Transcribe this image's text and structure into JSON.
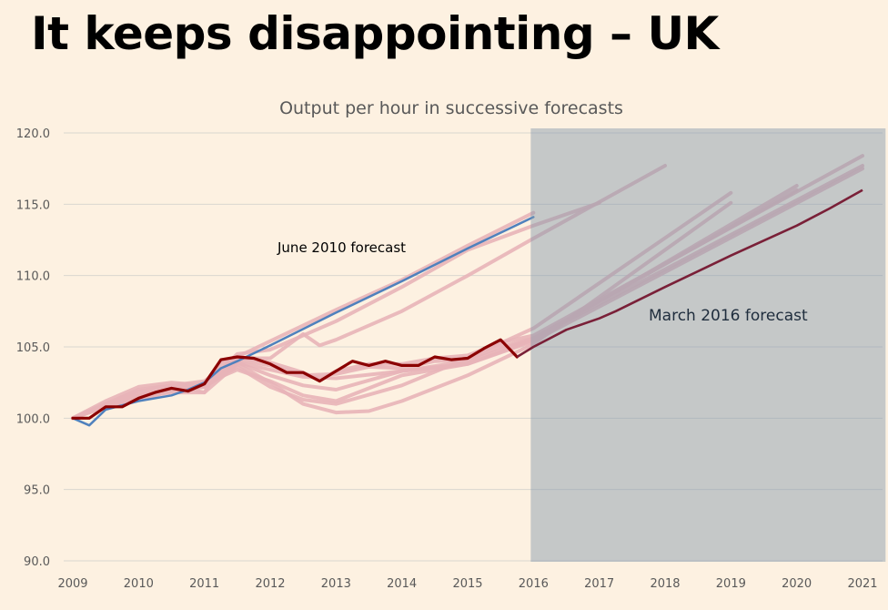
{
  "slide": {
    "title": "It keeps disappointing – UK"
  },
  "chart_data": {
    "type": "line",
    "title": "Output per hour in successive forecasts",
    "xlabel": "",
    "ylabel": "",
    "xlim": [
      2009,
      2021
    ],
    "ylim": [
      90,
      120
    ],
    "x_ticks": [
      "2009",
      "2010",
      "2011",
      "2012",
      "2013",
      "2014",
      "2015",
      "2016",
      "2017",
      "2018",
      "2019",
      "2020",
      "2021"
    ],
    "y_ticks": [
      "90.0",
      "95.0",
      "100.0",
      "105.0",
      "110.0",
      "115.0",
      "120.0"
    ],
    "grid": "horizontal",
    "shaded_region": {
      "from": 2016,
      "to": 2021.35,
      "meaning": "forecast period"
    },
    "colors": {
      "background": "#fdf1e1",
      "shade": "#c5ccd6",
      "past_forecasts": "#e8b4b8",
      "june_2010": "#4f81bd",
      "march_2016": "#8b0000",
      "march_2016_forecast": "#7a2038"
    },
    "annotations": [
      "June 2010 forecast",
      "March 2016 forecast"
    ],
    "series": [
      {
        "points": [
          [
            2009,
            100
          ],
          [
            2009.5,
            101
          ],
          [
            2010,
            101.9
          ],
          [
            2010.5,
            102.3
          ],
          [
            2011,
            102.6
          ],
          [
            2011.5,
            104.3
          ],
          [
            2012,
            105.4
          ],
          [
            2013,
            107.6
          ],
          [
            2014,
            109.7
          ],
          [
            2015,
            112.1
          ],
          [
            2016,
            114.4
          ]
        ]
      },
      {
        "points": [
          [
            2009,
            100
          ],
          [
            2009.5,
            101.2
          ],
          [
            2010,
            102.2
          ],
          [
            2010.5,
            102.5
          ],
          [
            2011,
            102.3
          ],
          [
            2011.5,
            104.5
          ],
          [
            2012,
            104.8
          ],
          [
            2013,
            106.8
          ],
          [
            2014,
            109.2
          ],
          [
            2015,
            111.8
          ],
          [
            2016,
            113.5
          ],
          [
            2017,
            115.1
          ]
        ]
      },
      {
        "points": [
          [
            2009,
            100
          ],
          [
            2009.5,
            101
          ],
          [
            2010,
            102
          ],
          [
            2010.5,
            102.3
          ],
          [
            2011,
            101.8
          ],
          [
            2011.25,
            103.8
          ],
          [
            2011.5,
            104.2
          ],
          [
            2012,
            104.2
          ],
          [
            2012.5,
            105.9
          ],
          [
            2012.75,
            105.1
          ],
          [
            2013,
            105.5
          ],
          [
            2014,
            107.5
          ],
          [
            2015,
            110
          ],
          [
            2016,
            112.6
          ],
          [
            2018,
            117.7
          ]
        ]
      },
      {
        "points": [
          [
            2009,
            100
          ],
          [
            2009.5,
            100.8
          ],
          [
            2010,
            101.5
          ],
          [
            2010.5,
            101.8
          ],
          [
            2011,
            101.8
          ],
          [
            2011.5,
            103.8
          ],
          [
            2012,
            102.5
          ],
          [
            2012.5,
            101.0
          ],
          [
            2013,
            100.4
          ],
          [
            2013.5,
            100.5
          ],
          [
            2014,
            101.2
          ],
          [
            2015,
            103.0
          ],
          [
            2016,
            105.2
          ],
          [
            2019,
            115.1
          ]
        ]
      },
      {
        "points": [
          [
            2009,
            100
          ],
          [
            2009.5,
            100.9
          ],
          [
            2010,
            101.3
          ],
          [
            2010.5,
            101.9
          ],
          [
            2011,
            102.2
          ],
          [
            2011.5,
            103.6
          ],
          [
            2012,
            102.2
          ],
          [
            2012.5,
            101.3
          ],
          [
            2013,
            101.0
          ],
          [
            2014,
            102.3
          ],
          [
            2015,
            104.2
          ],
          [
            2016,
            106.3
          ],
          [
            2019,
            115.8
          ]
        ]
      },
      {
        "points": [
          [
            2009,
            100
          ],
          [
            2009.5,
            101
          ],
          [
            2010,
            101.6
          ],
          [
            2010.5,
            102.1
          ],
          [
            2011,
            102.4
          ],
          [
            2011.5,
            103.4
          ],
          [
            2012,
            102.6
          ],
          [
            2012.5,
            101.6
          ],
          [
            2013,
            101.2
          ],
          [
            2014,
            103.0
          ],
          [
            2015,
            103.8
          ],
          [
            2016,
            105.5
          ],
          [
            2020,
            116.3
          ]
        ]
      },
      {
        "points": [
          [
            2009,
            100
          ],
          [
            2009.5,
            101
          ],
          [
            2010,
            101.7
          ],
          [
            2010.5,
            102
          ],
          [
            2011,
            102.5
          ],
          [
            2011.5,
            103.9
          ],
          [
            2012,
            103.0
          ],
          [
            2012.5,
            102.3
          ],
          [
            2013,
            102.0
          ],
          [
            2014,
            103.3
          ],
          [
            2015,
            104.0
          ],
          [
            2016,
            105.6
          ],
          [
            2020,
            116.0
          ]
        ]
      },
      {
        "points": [
          [
            2009,
            100
          ],
          [
            2009.5,
            100.9
          ],
          [
            2010,
            101.5
          ],
          [
            2010.5,
            102.1
          ],
          [
            2011,
            102.4
          ],
          [
            2011.25,
            104.0
          ],
          [
            2011.5,
            104.3
          ],
          [
            2012,
            103.9
          ],
          [
            2012.5,
            103.2
          ],
          [
            2012.75,
            102.7
          ],
          [
            2013,
            103.3
          ],
          [
            2013.5,
            103.8
          ],
          [
            2014,
            103.8
          ],
          [
            2014.5,
            104.2
          ],
          [
            2015,
            104.4
          ],
          [
            2015.5,
            105.3
          ],
          [
            2016,
            105.8
          ],
          [
            2021,
            118.4
          ]
        ]
      },
      {
        "points": [
          [
            2009,
            100
          ],
          [
            2009.5,
            100.8
          ],
          [
            2010,
            101.4
          ],
          [
            2010.5,
            102
          ],
          [
            2011,
            102.3
          ],
          [
            2011.5,
            104.1
          ],
          [
            2012,
            103.7
          ],
          [
            2012.5,
            103.0
          ],
          [
            2013,
            103.1
          ],
          [
            2013.5,
            103.6
          ],
          [
            2014,
            103.5
          ],
          [
            2014.5,
            104
          ],
          [
            2015,
            104.1
          ],
          [
            2015.5,
            105.0
          ],
          [
            2016,
            105.6
          ],
          [
            2021,
            117.7
          ]
        ]
      },
      {
        "points": [
          [
            2009,
            100
          ],
          [
            2009.5,
            100.8
          ],
          [
            2010,
            101.3
          ],
          [
            2010.5,
            101.9
          ],
          [
            2011,
            102.2
          ],
          [
            2011.5,
            103.9
          ],
          [
            2012,
            103.4
          ],
          [
            2012.5,
            102.9
          ],
          [
            2013,
            102.8
          ],
          [
            2014,
            103.3
          ],
          [
            2015,
            103.8
          ],
          [
            2016,
            105.4
          ],
          [
            2021,
            117.5
          ]
        ]
      },
      {
        "name": "June 2010 forecast",
        "points": [
          [
            2009,
            100
          ],
          [
            2009.25,
            99.5
          ],
          [
            2009.5,
            100.6
          ],
          [
            2009.75,
            100.9
          ],
          [
            2010,
            101.2
          ],
          [
            2010.5,
            101.6
          ],
          [
            2010.75,
            102.0
          ],
          [
            2011,
            102.5
          ],
          [
            2011.25,
            103.5
          ],
          [
            2011.5,
            104.0
          ],
          [
            2012,
            105.1
          ],
          [
            2013,
            107.4
          ],
          [
            2014,
            109.6
          ],
          [
            2015,
            111.9
          ],
          [
            2016,
            114.1
          ]
        ]
      },
      {
        "name": "March 2016 forecast",
        "points": [
          [
            2009,
            100.0
          ],
          [
            2009.25,
            100.0
          ],
          [
            2009.5,
            100.8
          ],
          [
            2009.75,
            100.8
          ],
          [
            2010,
            101.4
          ],
          [
            2010.25,
            101.8
          ],
          [
            2010.5,
            102.1
          ],
          [
            2010.75,
            101.9
          ],
          [
            2011,
            102.4
          ],
          [
            2011.25,
            104.1
          ],
          [
            2011.5,
            104.3
          ],
          [
            2011.75,
            104.2
          ],
          [
            2012,
            103.8
          ],
          [
            2012.25,
            103.2
          ],
          [
            2012.5,
            103.2
          ],
          [
            2012.75,
            102.6
          ],
          [
            2013,
            103.3
          ],
          [
            2013.25,
            104.0
          ],
          [
            2013.5,
            103.7
          ],
          [
            2013.75,
            104.0
          ],
          [
            2014,
            103.7
          ],
          [
            2014.25,
            103.7
          ],
          [
            2014.5,
            104.3
          ],
          [
            2014.75,
            104.1
          ],
          [
            2015,
            104.2
          ],
          [
            2015.25,
            104.9
          ],
          [
            2015.5,
            105.5
          ],
          [
            2015.75,
            104.3
          ]
        ],
        "forecast_points": [
          [
            2015.75,
            104.3
          ],
          [
            2016,
            105.0
          ],
          [
            2016.5,
            106.2
          ],
          [
            2017,
            107.0
          ],
          [
            2017.25,
            107.5
          ],
          [
            2018,
            109.2
          ],
          [
            2019,
            111.4
          ],
          [
            2020,
            113.5
          ],
          [
            2020.5,
            114.7
          ],
          [
            2021,
            116.0
          ]
        ]
      }
    ]
  }
}
